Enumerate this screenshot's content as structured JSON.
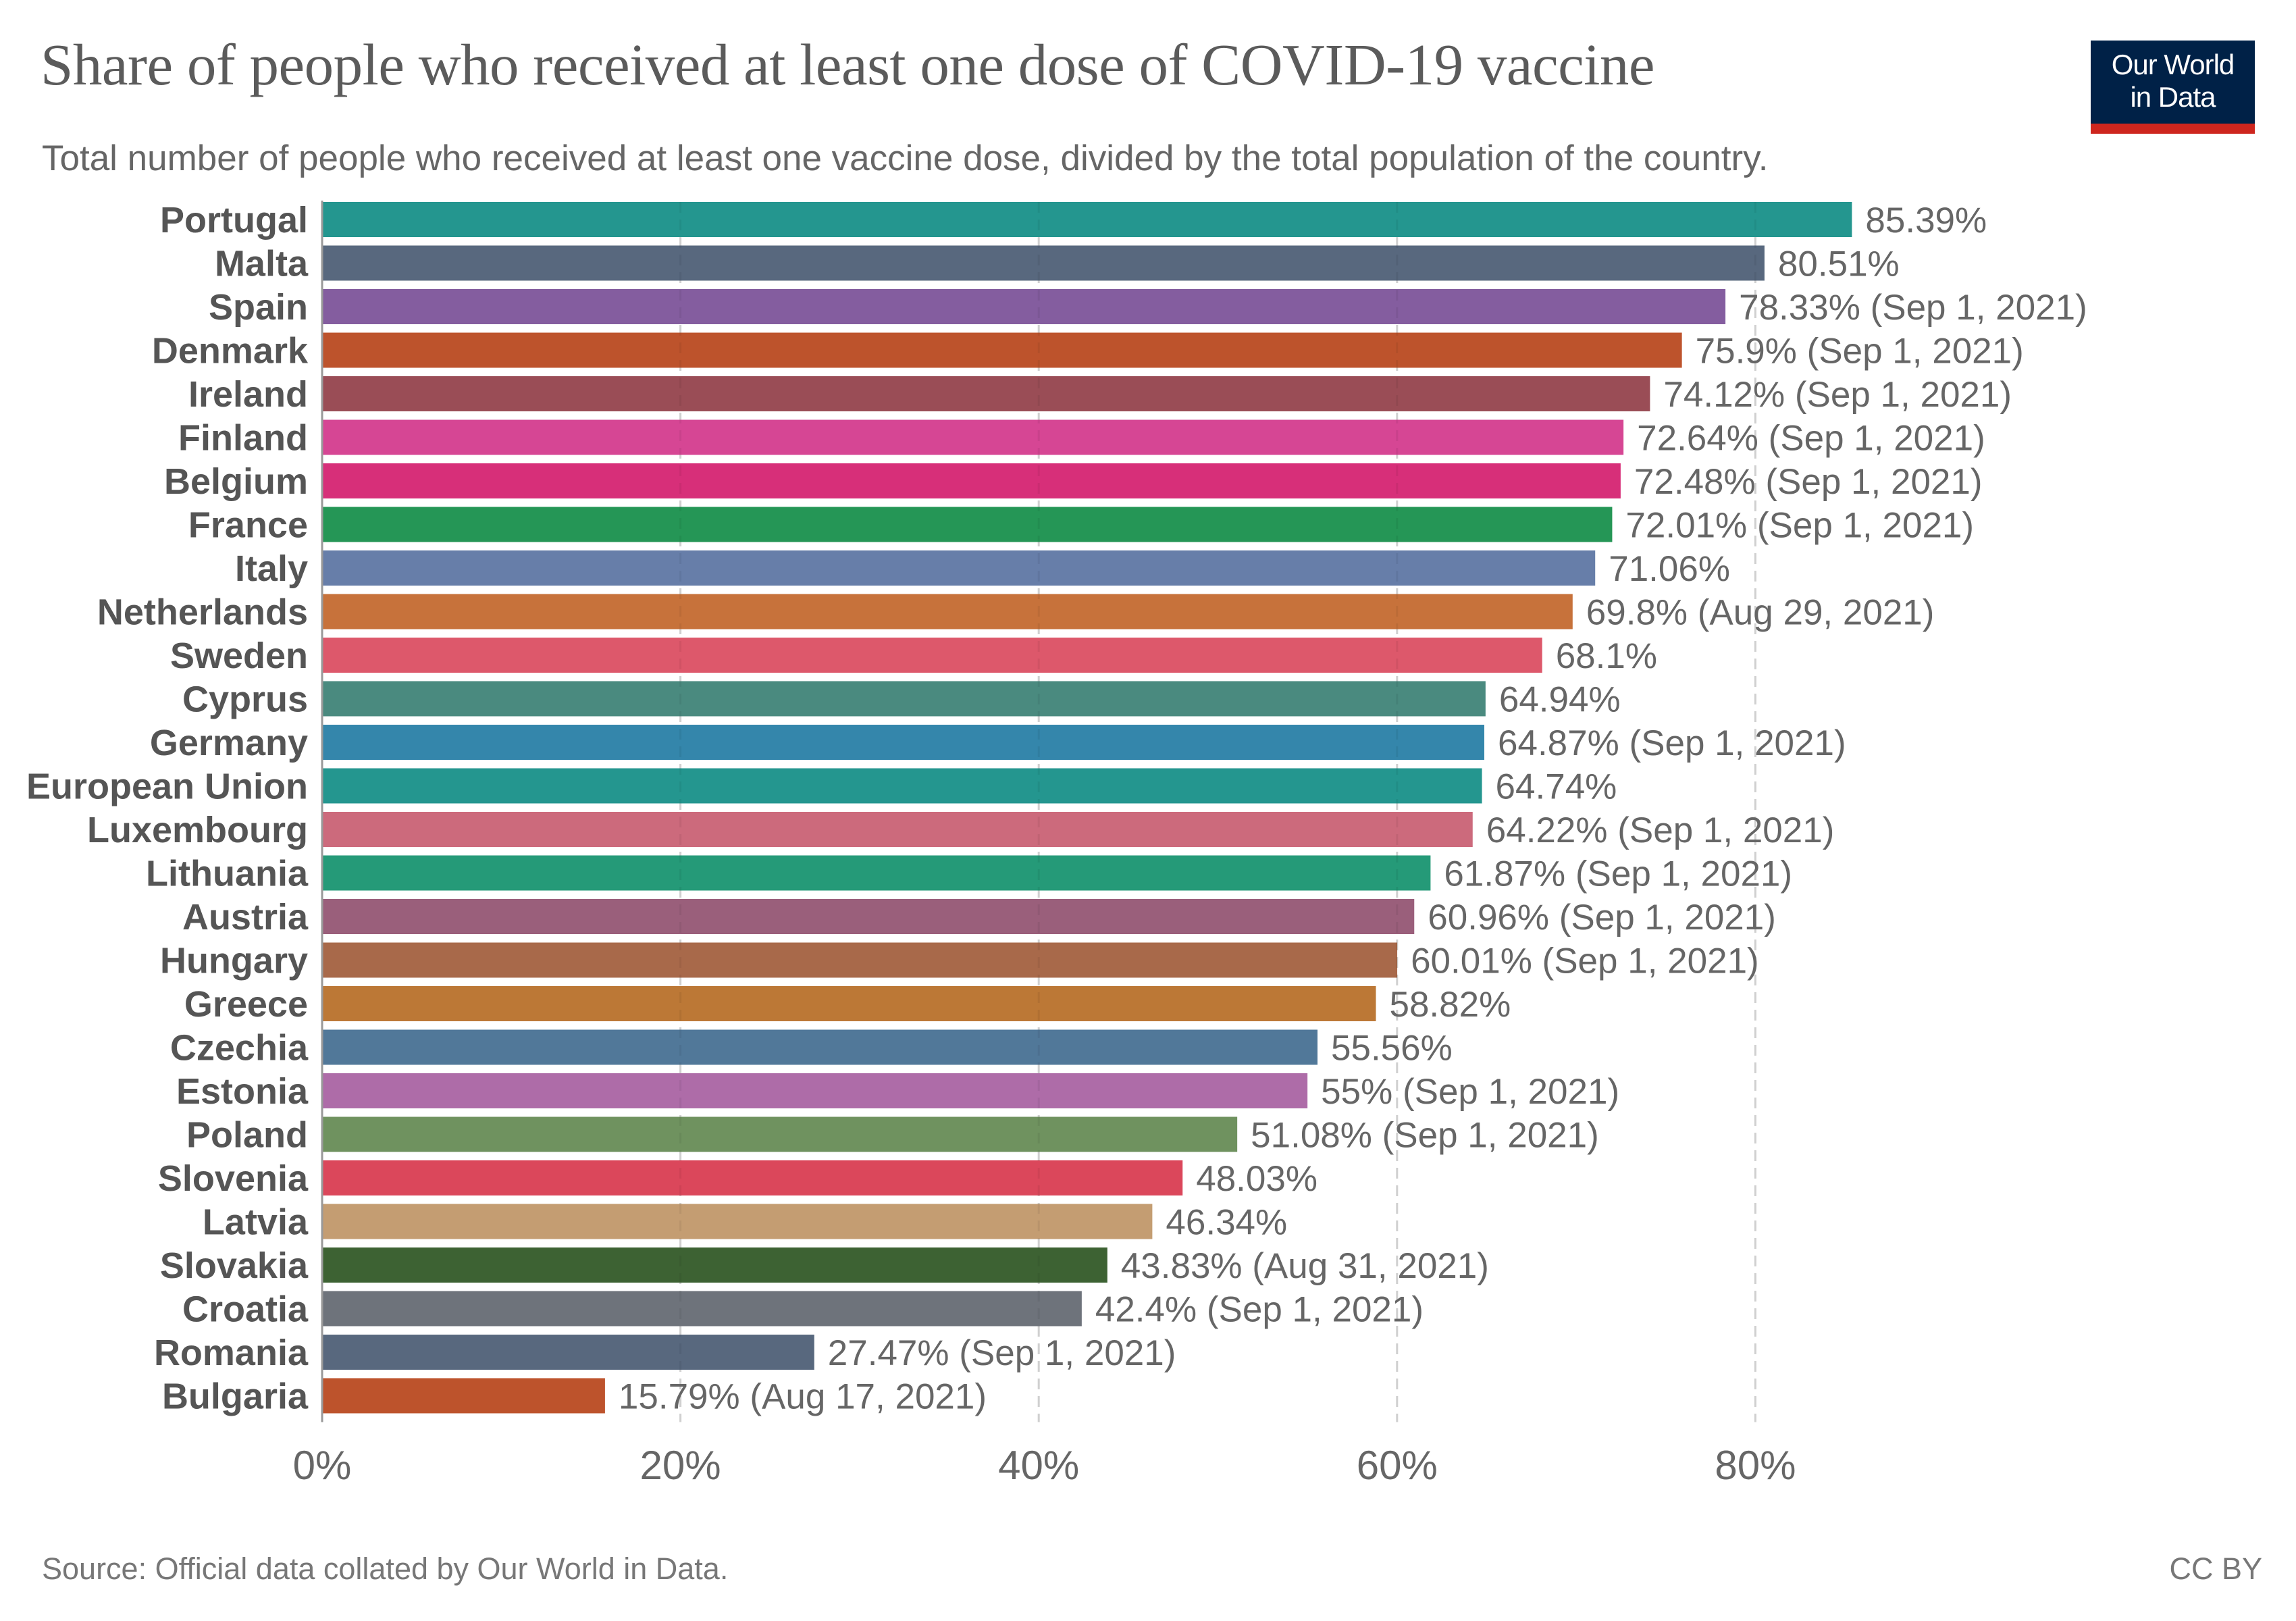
{
  "header": {
    "title": "Share of people who received at least one dose of COVID-19 vaccine",
    "subtitle": "Total number of people who received at least one vaccine dose, divided by the total population of the country."
  },
  "logo": {
    "line1": "Our World",
    "line2": "in Data",
    "colors": {
      "background": "#002147",
      "band": "#ce261e",
      "text": "#ffffff"
    }
  },
  "footer": {
    "source": "Source: Official data collated by Our World in Data.",
    "license": "CC BY"
  },
  "chart_data": {
    "type": "bar",
    "orientation": "horizontal",
    "title": "Share of people who received at least one dose of COVID-19 vaccine",
    "subtitle": "Total number of people who received at least one vaccine dose, divided by the total population of the country.",
    "xlabel": "",
    "ylabel": "",
    "xlim": [
      0,
      90
    ],
    "unit": "%",
    "grid": "vertical dashed",
    "x_ticks": [
      {
        "value": 0,
        "label": "0%"
      },
      {
        "value": 20,
        "label": "20%"
      },
      {
        "value": 40,
        "label": "40%"
      },
      {
        "value": 60,
        "label": "60%"
      },
      {
        "value": 80,
        "label": "80%"
      }
    ],
    "bars": [
      {
        "category": "Portugal",
        "value": 85.39,
        "label": "85.39%",
        "color": "#24968f"
      },
      {
        "category": "Malta",
        "value": 80.51,
        "label": "80.51%",
        "color": "#58687e"
      },
      {
        "category": "Spain",
        "value": 78.33,
        "label": "78.33% (Sep 1, 2021)",
        "color": "#845d9f"
      },
      {
        "category": "Denmark",
        "value": 75.9,
        "label": "75.9% (Sep 1, 2021)",
        "color": "#bd532c"
      },
      {
        "category": "Ireland",
        "value": 74.12,
        "label": "74.12% (Sep 1, 2021)",
        "color": "#9a4d56"
      },
      {
        "category": "Finland",
        "value": 72.64,
        "label": "72.64% (Sep 1, 2021)",
        "color": "#d64694"
      },
      {
        "category": "Belgium",
        "value": 72.48,
        "label": "72.48% (Sep 1, 2021)",
        "color": "#d72f79"
      },
      {
        "category": "France",
        "value": 72.01,
        "label": "72.01% (Sep 1, 2021)",
        "color": "#259656"
      },
      {
        "category": "Italy",
        "value": 71.06,
        "label": "71.06%",
        "color": "#677ea9"
      },
      {
        "category": "Netherlands",
        "value": 69.8,
        "label": "69.8% (Aug 29, 2021)",
        "color": "#c7723b"
      },
      {
        "category": "Sweden",
        "value": 68.1,
        "label": "68.1%",
        "color": "#dd586b"
      },
      {
        "category": "Cyprus",
        "value": 64.94,
        "label": "64.94%",
        "color": "#4a8a7f"
      },
      {
        "category": "Germany",
        "value": 64.87,
        "label": "64.87% (Sep 1, 2021)",
        "color": "#3486ab"
      },
      {
        "category": "European Union",
        "value": 64.74,
        "label": "64.74%",
        "color": "#24968f"
      },
      {
        "category": "Luxembourg",
        "value": 64.22,
        "label": "64.22% (Sep 1, 2021)",
        "color": "#cc6a7c"
      },
      {
        "category": "Lithuania",
        "value": 61.87,
        "label": "61.87% (Sep 1, 2021)",
        "color": "#259a78"
      },
      {
        "category": "Austria",
        "value": 60.96,
        "label": "60.96% (Sep 1, 2021)",
        "color": "#9a5f7b"
      },
      {
        "category": "Hungary",
        "value": 60.01,
        "label": "60.01% (Sep 1, 2021)",
        "color": "#a8694a"
      },
      {
        "category": "Greece",
        "value": 58.82,
        "label": "58.82%",
        "color": "#bc7836"
      },
      {
        "category": "Czechia",
        "value": 55.56,
        "label": "55.56%",
        "color": "#517899"
      },
      {
        "category": "Estonia",
        "value": 55,
        "label": "55% (Sep 1, 2021)",
        "color": "#ae6ca8"
      },
      {
        "category": "Poland",
        "value": 51.08,
        "label": "51.08% (Sep 1, 2021)",
        "color": "#6f925f"
      },
      {
        "category": "Slovenia",
        "value": 48.03,
        "label": "48.03%",
        "color": "#db475b"
      },
      {
        "category": "Latvia",
        "value": 46.34,
        "label": "46.34%",
        "color": "#c49d72"
      },
      {
        "category": "Slovakia",
        "value": 43.83,
        "label": "43.83% (Aug 31, 2021)",
        "color": "#3d6233"
      },
      {
        "category": "Croatia",
        "value": 42.4,
        "label": "42.4% (Sep 1, 2021)",
        "color": "#6e737b"
      },
      {
        "category": "Romania",
        "value": 27.47,
        "label": "27.47% (Sep 1, 2021)",
        "color": "#58687e"
      },
      {
        "category": "Bulgaria",
        "value": 15.79,
        "label": "15.79% (Aug 17, 2021)",
        "color": "#bd532c"
      }
    ]
  }
}
